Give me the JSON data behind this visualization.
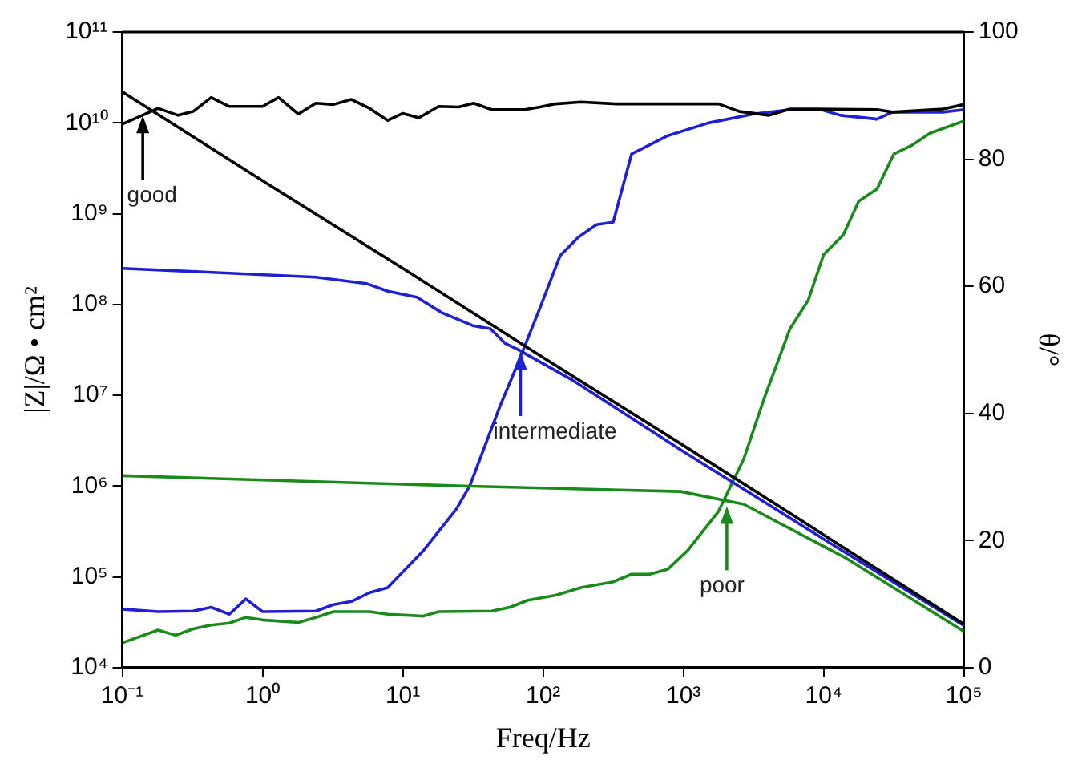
{
  "chart_data": {
    "type": "line",
    "xlabel": "Freq/Hz",
    "ylabel": "|Z|/Ω • cm²",
    "y2label": "θ/°",
    "log": "xy",
    "grid": false,
    "legend": false,
    "marker": "none",
    "line_style": "solid",
    "xlim": [
      0.1,
      100000
    ],
    "xticks": [
      {
        "value": 0.1,
        "label": "10⁻¹"
      },
      {
        "value": 1,
        "label": "10⁰"
      },
      {
        "value": 10,
        "label": "10¹"
      },
      {
        "value": 100,
        "label": "10²"
      },
      {
        "value": 1000,
        "label": "10³"
      },
      {
        "value": 10000,
        "label": "10⁴"
      },
      {
        "value": 100000,
        "label": "10⁵"
      }
    ],
    "ylim": [
      10000,
      100000000000
    ],
    "yticks": [
      {
        "value": 10000,
        "label": "10⁴"
      },
      {
        "value": 100000,
        "label": "10⁵"
      },
      {
        "value": 1000000,
        "label": "10⁶"
      },
      {
        "value": 10000000,
        "label": "10⁷"
      },
      {
        "value": 100000000,
        "label": "10⁸"
      },
      {
        "value": 1000000000,
        "label": "10⁹"
      },
      {
        "value": 10000000000,
        "label": "10¹⁰"
      },
      {
        "value": 100000000000,
        "label": "10¹¹"
      }
    ],
    "y2lim": [
      0,
      100
    ],
    "y2ticks": [
      0,
      20,
      40,
      60,
      80,
      100
    ],
    "series": [
      {
        "color": "#000000",
        "x": [
          0.1,
          1,
          10,
          100,
          1000,
          10000,
          100000
        ],
        "values": [
          22000000000,
          2300000000,
          250000000,
          26000000,
          2800000,
          290000,
          30000
        ]
      },
      {
        "color": "#1f1fd6",
        "x": [
          0.1,
          2.4,
          5.5,
          7.8,
          12.6,
          19,
          32,
          42,
          54,
          66,
          158,
          1000,
          10000,
          100000
        ],
        "values": [
          250000000,
          200000000,
          170000000,
          140000000,
          120000000,
          81000000,
          58000000,
          54000000,
          37000000,
          32000000,
          15000000,
          2400000,
          260000,
          29000
        ]
      },
      {
        "color": "#1a8a1a",
        "x": [
          0.1,
          27,
          955,
          2690,
          14500,
          100000
        ],
        "values": [
          1300000,
          1000000,
          870000,
          630000,
          160000,
          25000
        ]
      },
      {
        "color": "#000000",
        "axis": "y2",
        "x": [
          0.1,
          0.18,
          0.25,
          0.32,
          0.43,
          0.58,
          1,
          1.3,
          1.8,
          2.4,
          3.2,
          4.3,
          5.8,
          7.8,
          10,
          13,
          18,
          25,
          32,
          43,
          74,
          95,
          123,
          186,
          331,
          1780,
          2510,
          4070,
          5750,
          24000,
          30900,
          70800,
          100000
        ],
        "values": [
          85.5,
          88.0,
          86.9,
          87.5,
          89.7,
          88.3,
          88.3,
          89.7,
          87.1,
          88.8,
          88.6,
          89.4,
          88.0,
          86.1,
          87.2,
          86.5,
          88.3,
          88.2,
          88.8,
          87.8,
          87.8,
          88.2,
          88.7,
          89.0,
          88.7,
          88.7,
          87.5,
          86.9,
          87.9,
          87.8,
          87.4,
          87.9,
          88.6
        ]
      },
      {
        "color": "#1f1fd6",
        "axis": "y2",
        "x": [
          0.1,
          0.18,
          0.32,
          0.43,
          0.58,
          0.76,
          1,
          2.4,
          3.2,
          4.3,
          5.8,
          7.8,
          14,
          24,
          30,
          49,
          65,
          95,
          132,
          178,
          240,
          316,
          427,
          776,
          1510,
          3160,
          5750,
          9550,
          13200,
          24000,
          30900,
          70800,
          100000
        ],
        "values": [
          9.2,
          8.8,
          8.9,
          9.5,
          8.4,
          10.8,
          8.8,
          8.9,
          9.9,
          10.4,
          11.8,
          12.6,
          18.4,
          24.9,
          28.6,
          41.0,
          47.5,
          56.6,
          64.8,
          67.7,
          69.7,
          70.1,
          80.8,
          83.7,
          85.7,
          87.1,
          87.8,
          87.8,
          86.9,
          86.3,
          87.4,
          87.4,
          87.8
        ]
      },
      {
        "color": "#1a8a1a",
        "axis": "y2",
        "x": [
          0.1,
          0.18,
          0.24,
          0.32,
          0.43,
          0.58,
          0.76,
          1,
          1.8,
          2.4,
          3.2,
          5.8,
          7.8,
          14,
          18,
          43,
          58,
          78,
          123,
          186,
          316,
          427,
          575,
          776,
          1070,
          1780,
          2690,
          3800,
          5750,
          7760,
          10000,
          13800,
          17800,
          24000,
          31600,
          42700,
          57500,
          100000
        ],
        "values": [
          3.9,
          5.9,
          5.1,
          6.1,
          6.7,
          7.0,
          7.9,
          7.5,
          7.1,
          7.9,
          8.8,
          8.8,
          8.4,
          8.1,
          8.8,
          8.9,
          9.5,
          10.6,
          11.4,
          12.6,
          13.5,
          14.7,
          14.7,
          15.5,
          18.4,
          24.6,
          32.8,
          42.6,
          53.3,
          57.8,
          65.0,
          68.1,
          73.4,
          75.3,
          80.8,
          82.2,
          84.1,
          86.0
        ]
      }
    ],
    "annotations": [
      {
        "text": "good",
        "x": 0.14,
        "y": 12000000000
      },
      {
        "text": "intermediate",
        "x": 69,
        "y": 30000000
      },
      {
        "text": "poor",
        "x": 2040,
        "y": 600000
      }
    ]
  }
}
